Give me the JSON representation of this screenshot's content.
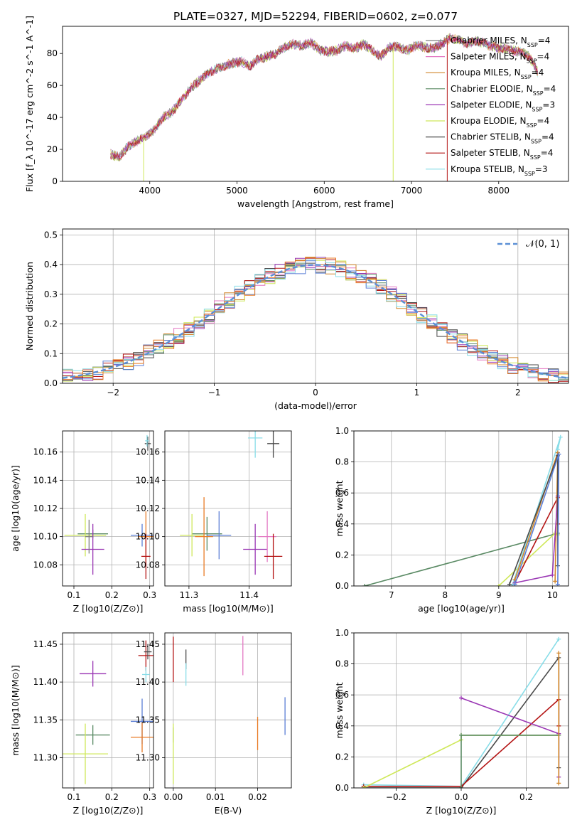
{
  "figure": {
    "title": "PLATE=0327, MJD=52294, FIBERID=0602, z=0.077",
    "palette": {
      "chabrier_miles": "#7f7f7f",
      "salpeter_miles": "#e377c2",
      "kroupa_miles": "#d2862a",
      "chabrier_elodie": "#5a8a64",
      "salpeter_elodie": "#9a37b4",
      "kroupa_elodie": "#cfe85a",
      "chabrier_stelib": "#4a4a4a",
      "salpeter_stelib": "#b41414",
      "kroupa_stelib": "#88dde8",
      "normal": "#5b8fd6",
      "blue_model": "#5b7fd6",
      "orange_model": "#e87a24"
    }
  },
  "chart_data": [
    {
      "id": "spectrum",
      "type": "line",
      "xlabel": "wavelength [Angstrom, rest frame]",
      "ylabel": "Flux [f_λ 10^-17 erg cm^-2 s^-1 A^-1]",
      "xlim": [
        3000,
        8800
      ],
      "ylim": [
        0,
        97
      ],
      "xticks": [
        "4000",
        "5000",
        "6000",
        "7000",
        "8000"
      ],
      "yticks": [
        "0",
        "20",
        "40",
        "60",
        "80"
      ],
      "legend_placement": "right",
      "grid": false,
      "legend": [
        {
          "name": "Chabrier MILES",
          "suffix": "=4",
          "n": "SSP"
        },
        {
          "name": "Salpeter MILES",
          "suffix": "=4",
          "n": "SSP"
        },
        {
          "name": "Kroupa MILES",
          "suffix": "=4",
          "n": "SSP"
        },
        {
          "name": "Chabrier ELODIE",
          "suffix": "=4",
          "n": "SSP"
        },
        {
          "name": "Salpeter ELODIE",
          "suffix": "=3",
          "n": "SSP"
        },
        {
          "name": "Kroupa ELODIE",
          "suffix": "=4",
          "n": "SSP"
        },
        {
          "name": "Chabrier STELIB",
          "suffix": "=4",
          "n": "SSP"
        },
        {
          "name": "Salpeter STELIB",
          "suffix": "=4",
          "n": "SSP"
        },
        {
          "name": "Kroupa STELIB",
          "suffix": "=3",
          "n": "SSP"
        }
      ],
      "continuum": {
        "x": [
          3550,
          3650,
          3750,
          3850,
          3950,
          4050,
          4150,
          4250,
          4350,
          4450,
          4550,
          4650,
          4750,
          4850,
          4950,
          5050,
          5150,
          5250,
          5350,
          5450,
          5550,
          5650,
          5750,
          5850,
          5950,
          6050,
          6150,
          6250,
          6350,
          6450,
          6550,
          6650,
          6750,
          6850,
          6950,
          7050,
          7150,
          7250,
          7350,
          7450,
          7550,
          7650,
          7750,
          7850,
          7950,
          8050,
          8150,
          8250,
          8350,
          8450
        ],
        "y": [
          17,
          15,
          22,
          25,
          28,
          32,
          40,
          43,
          50,
          57,
          62,
          67,
          70,
          72,
          74,
          75,
          72,
          77,
          78,
          80,
          84,
          86,
          85,
          87,
          82,
          81,
          82,
          85,
          83,
          86,
          82,
          78,
          84,
          84,
          82,
          85,
          84,
          83,
          86,
          90,
          88,
          86,
          88,
          86,
          84,
          83,
          82,
          81,
          78,
          68
        ]
      },
      "spikes": [
        {
          "x": 3930,
          "y_to": 0,
          "series": 5
        },
        {
          "x": 6790,
          "y_to": 0,
          "series": 5
        },
        {
          "x": 7410,
          "y_to": 0,
          "series": 7
        }
      ]
    },
    {
      "id": "residuals",
      "type": "line",
      "xlabel": "(data-model)/error",
      "ylabel": "Normed distribution",
      "xlim": [
        -2.5,
        2.5
      ],
      "ylim": [
        0,
        0.52
      ],
      "xticks": [
        -2,
        -1,
        0,
        1,
        2
      ],
      "xtick_labels": [
        "−2",
        "−1",
        "0",
        "1",
        "2"
      ],
      "yticks": [
        0,
        0.1,
        0.2,
        0.3,
        0.4,
        0.5
      ],
      "ytick_labels": [
        "0.0",
        "0.1",
        "0.2",
        "0.3",
        "0.4",
        "0.5"
      ],
      "grid": true,
      "legend": [
        {
          "name": "𝒩(0, 1)",
          "style": "dashed"
        }
      ],
      "legend_placement": "upper right",
      "bin_width": 0.1,
      "curve": "standard normal pdf"
    },
    {
      "id": "age_vs_Z",
      "type": "scatter",
      "xlabel": "Z [log10(Z/Z⊙)]",
      "ylabel": "age [log10(age/yr)]",
      "xlim": [
        0.07,
        0.31
      ],
      "ylim": [
        10.065,
        10.175
      ],
      "xticks": [
        "0.1",
        "0.2",
        "0.3"
      ],
      "yticks": [
        "10.08",
        "10.10",
        "10.12",
        "10.14",
        "10.16"
      ],
      "grid": true,
      "points": [
        {
          "x": 0.15,
          "y": 10.102,
          "xerr": 0.04,
          "yerr": 0.003,
          "series": 3
        },
        {
          "x": 0.13,
          "y": 10.101,
          "xerr": 0.055,
          "yerr": 0.015,
          "series": 5
        },
        {
          "x": 0.15,
          "y": 10.091,
          "xerr": 0.03,
          "yerr": 0.018,
          "series": 4
        },
        {
          "x": 0.14,
          "y": 10.1,
          "xerr": 0.01,
          "yerr": 0.012,
          "series": 0
        },
        {
          "x": 0.28,
          "y": 10.101,
          "xerr": 0.03,
          "yerr": 0.008,
          "series": 10
        },
        {
          "x": 0.29,
          "y": 10.1,
          "xerr": 0.02,
          "yerr": 0.018,
          "series": 11
        },
        {
          "x": 0.29,
          "y": 10.086,
          "xerr": 0.012,
          "yerr": 0.016,
          "series": 7
        },
        {
          "x": 0.295,
          "y": 10.166,
          "xerr": 0.008,
          "yerr": 0.005,
          "series": 6
        },
        {
          "x": 0.293,
          "y": 10.168,
          "xerr": 0.005,
          "yerr": 0.004,
          "series": 8
        }
      ]
    },
    {
      "id": "age_vs_mass",
      "type": "scatter",
      "xlabel": "mass [log10(M/M⊙)]",
      "ylabel": "",
      "xlim": [
        11.26,
        11.47
      ],
      "ylim": [
        10.065,
        10.175
      ],
      "xticks": [
        "11.3",
        "11.4"
      ],
      "yticks": [
        "10.08",
        "10.10",
        "10.12",
        "10.14",
        "10.16"
      ],
      "grid": true,
      "points": [
        {
          "x": 11.33,
          "y": 10.102,
          "xerr": 0.025,
          "yerr": 0.012,
          "series": 3
        },
        {
          "x": 11.305,
          "y": 10.101,
          "xerr": 0.02,
          "yerr": 0.015,
          "series": 5
        },
        {
          "x": 11.325,
          "y": 10.1,
          "xerr": 0.015,
          "yerr": 0.028,
          "series": 11
        },
        {
          "x": 11.35,
          "y": 10.101,
          "xerr": 0.02,
          "yerr": 0.017,
          "series": 10
        },
        {
          "x": 11.41,
          "y": 10.091,
          "xerr": 0.02,
          "yerr": 0.018,
          "series": 4
        },
        {
          "x": 11.43,
          "y": 10.1,
          "xerr": 0.015,
          "yerr": 0.018,
          "series": 1
        },
        {
          "x": 11.44,
          "y": 10.086,
          "xerr": 0.015,
          "yerr": 0.016,
          "series": 7
        },
        {
          "x": 11.41,
          "y": 10.17,
          "xerr": 0.012,
          "yerr": 0.014,
          "series": 8
        },
        {
          "x": 11.44,
          "y": 10.166,
          "xerr": 0.01,
          "yerr": 0.01,
          "series": 6
        }
      ]
    },
    {
      "id": "massweight_vs_age",
      "type": "line",
      "xlabel": "age [log10(age/yr)]",
      "ylabel": "mass weight",
      "xlim": [
        6.3,
        10.3
      ],
      "ylim": [
        0,
        1
      ],
      "xticks": [
        7,
        8,
        9,
        10
      ],
      "yticks": [
        0,
        0.2,
        0.4,
        0.6,
        0.8,
        1.0
      ],
      "ytick_labels": [
        "0.0",
        "0.2",
        "0.4",
        "0.6",
        "0.8",
        "1.0"
      ],
      "grid": true,
      "series": [
        {
          "name": "Chabrier ELODIE",
          "series": 3,
          "points": [
            [
              6.5,
              0.0
            ],
            [
              10.1,
              0.34
            ]
          ]
        },
        {
          "name": "Kroupa ELODIE",
          "series": 5,
          "points": [
            [
              9.0,
              0.0
            ],
            [
              10.05,
              0.34
            ],
            [
              10.1,
              0.33
            ]
          ]
        },
        {
          "name": "Kroupa STELIB",
          "series": 8,
          "points": [
            [
              9.25,
              0.0
            ],
            [
              10.15,
              0.96
            ],
            [
              10.1,
              0.88
            ]
          ]
        },
        {
          "name": "Salpeter STELIB",
          "series": 7,
          "points": [
            [
              9.3,
              0.02
            ],
            [
              10.1,
              0.57
            ],
            [
              10.1,
              0.4
            ]
          ]
        },
        {
          "name": "Kroupa MILES",
          "series": 2,
          "points": [
            [
              9.3,
              0.04
            ],
            [
              10.1,
              0.86
            ],
            [
              10.05,
              0.03
            ]
          ]
        },
        {
          "name": "Salpeter ELODIE",
          "series": 4,
          "points": [
            [
              9.3,
              0.02
            ],
            [
              10.0,
              0.07
            ],
            [
              10.1,
              0.58
            ]
          ]
        },
        {
          "name": "Chabrier STELIB",
          "series": 6,
          "points": [
            [
              9.2,
              0.01
            ],
            [
              10.1,
              0.84
            ],
            [
              10.1,
              0.13
            ]
          ]
        },
        {
          "name": "Blue model",
          "series": 10,
          "points": [
            [
              9.3,
              0.01
            ],
            [
              10.12,
              0.85
            ],
            [
              10.1,
              0.01
            ]
          ]
        }
      ]
    },
    {
      "id": "mass_vs_Z",
      "type": "scatter",
      "xlabel": "Z [log10(Z/Z⊙)]",
      "ylabel": "mass [log10(M/M⊙)]",
      "xlim": [
        0.07,
        0.31
      ],
      "ylim": [
        11.26,
        11.465
      ],
      "xticks": [
        "0.1",
        "0.2",
        "0.3"
      ],
      "yticks": [
        "11.30",
        "11.35",
        "11.40",
        "11.45"
      ],
      "grid": true,
      "points": [
        {
          "x": 0.15,
          "y": 11.411,
          "xerr": 0.035,
          "yerr": 0.017,
          "series": 4
        },
        {
          "x": 0.15,
          "y": 11.33,
          "xerr": 0.045,
          "yerr": 0.013,
          "series": 3
        },
        {
          "x": 0.13,
          "y": 11.305,
          "xerr": 0.06,
          "yerr": 0.04,
          "series": 5
        },
        {
          "x": 0.29,
          "y": 11.435,
          "xerr": 0.02,
          "yerr": 0.02,
          "series": 7
        },
        {
          "x": 0.295,
          "y": 11.44,
          "xerr": 0.01,
          "yerr": 0.01,
          "series": 6
        },
        {
          "x": 0.29,
          "y": 11.41,
          "xerr": 0.01,
          "yerr": 0.01,
          "series": 8
        },
        {
          "x": 0.28,
          "y": 11.348,
          "xerr": 0.03,
          "yerr": 0.03,
          "series": 10
        },
        {
          "x": 0.28,
          "y": 11.327,
          "xerr": 0.03,
          "yerr": 0.02,
          "series": 11
        }
      ]
    },
    {
      "id": "mass_vs_EBV",
      "type": "scatter",
      "xlabel": "E(B-V)",
      "ylabel": "",
      "xlim": [
        -0.002,
        0.028
      ],
      "ylim": [
        11.26,
        11.465
      ],
      "xticks": [
        "0.00",
        "0.01",
        "0.02"
      ],
      "yticks": [
        "11.30",
        "11.35",
        "11.40",
        "11.45"
      ],
      "grid": true,
      "points": [
        {
          "x": 0.0,
          "y": 11.43,
          "yerr": 0.03,
          "series": 7
        },
        {
          "x": 0.0,
          "y": 11.33,
          "yerr": 0.01,
          "series": 3
        },
        {
          "x": 0.0,
          "y": 11.305,
          "yerr": 0.04,
          "series": 5
        },
        {
          "x": 0.003,
          "y": 11.43,
          "yerr": 0.013,
          "series": 6
        },
        {
          "x": 0.003,
          "y": 11.41,
          "yerr": 0.015,
          "series": 8
        },
        {
          "x": 0.0165,
          "y": 11.435,
          "yerr": 0.026,
          "series": 1
        },
        {
          "x": 0.02,
          "y": 11.332,
          "yerr": 0.022,
          "series": 11
        },
        {
          "x": 0.0265,
          "y": 11.355,
          "yerr": 0.025,
          "series": 10
        }
      ]
    },
    {
      "id": "massweight_vs_Z",
      "type": "line",
      "xlabel": "Z [log10(Z/Z⊙)]",
      "ylabel": "mass weight",
      "xlim": [
        -0.33,
        0.33
      ],
      "ylim": [
        0,
        1
      ],
      "xticks": [
        -0.2,
        0.0,
        0.2
      ],
      "xtick_labels": [
        "−0.2",
        "0.0",
        "0.2"
      ],
      "yticks": [
        0,
        0.2,
        0.4,
        0.6,
        0.8,
        1.0
      ],
      "ytick_labels": [
        "0.0",
        "0.2",
        "0.4",
        "0.6",
        "0.8",
        "1.0"
      ],
      "grid": true,
      "series": [
        {
          "name": "Kroupa STELIB",
          "series": 8,
          "points": [
            [
              -0.3,
              0.02
            ],
            [
              0.0,
              0.01
            ],
            [
              0.3,
              0.96
            ]
          ]
        },
        {
          "name": "Chabrier STELIB",
          "series": 6,
          "points": [
            [
              -0.3,
              0.0
            ],
            [
              0.0,
              0.0
            ],
            [
              0.3,
              0.84
            ],
            [
              0.3,
              0.13
            ]
          ]
        },
        {
          "name": "Salpeter STELIB",
          "series": 7,
          "points": [
            [
              -0.3,
              0.01
            ],
            [
              0.0,
              0.01
            ],
            [
              0.3,
              0.57
            ],
            [
              0.3,
              0.4
            ]
          ]
        },
        {
          "name": "Kroupa ELODIE",
          "series": 5,
          "points": [
            [
              -0.3,
              0.0
            ],
            [
              0.0,
              0.31
            ],
            [
              0.0,
              0.34
            ],
            [
              0.3,
              0.34
            ]
          ]
        },
        {
          "name": "Salpeter ELODIE",
          "series": 4,
          "points": [
            [
              0.0,
              0.58
            ],
            [
              0.3,
              0.35
            ],
            [
              0.3,
              0.07
            ]
          ]
        },
        {
          "name": "Chabrier ELODIE",
          "series": 3,
          "points": [
            [
              0.0,
              0.0
            ],
            [
              0.0,
              0.34
            ],
            [
              0.3,
              0.34
            ]
          ]
        },
        {
          "name": "Kroupa MILES",
          "series": 2,
          "points": [
            [
              0.3,
              0.87
            ],
            [
              0.3,
              0.03
            ]
          ]
        }
      ]
    }
  ]
}
